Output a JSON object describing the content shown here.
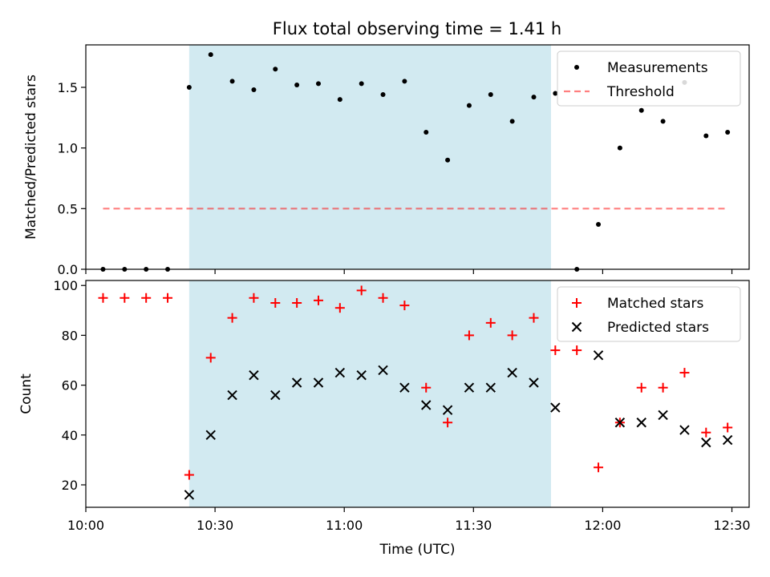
{
  "title": "Flux total observing time = 1.41 h",
  "colors": {
    "shade": "#add8e6",
    "measurement": "#000000",
    "threshold": "#ff0000",
    "matched": "#ff0000",
    "predicted": "#000000"
  },
  "chart_data": [
    {
      "type": "scatter",
      "ylabel": "Matched/Predicted stars",
      "xlabel": "",
      "xlim": [
        "10:00",
        "12:34"
      ],
      "ylim": [
        0,
        1.85
      ],
      "yticks": [
        "0.0",
        "0.5",
        "1.0",
        "1.5"
      ],
      "ytick_values": [
        0,
        0.5,
        1.0,
        1.5
      ],
      "shaded_span": [
        "10:24",
        "11:48"
      ],
      "legend_position": "upper right",
      "series": [
        {
          "name": "Measurements",
          "marker": "dot",
          "x": [
            "10:04",
            "10:09",
            "10:14",
            "10:19",
            "10:24",
            "10:29",
            "10:34",
            "10:39",
            "10:44",
            "10:49",
            "10:54",
            "10:59",
            "11:04",
            "11:09",
            "11:14",
            "11:19",
            "11:24",
            "11:29",
            "11:34",
            "11:39",
            "11:44",
            "11:49",
            "11:54",
            "11:59",
            "12:04",
            "12:09",
            "12:14",
            "12:19",
            "12:24",
            "12:29"
          ],
          "y": [
            0,
            0,
            0,
            0,
            1.5,
            1.77,
            1.55,
            1.48,
            1.65,
            1.52,
            1.53,
            1.4,
            1.53,
            1.44,
            1.55,
            1.13,
            0.9,
            1.35,
            1.44,
            1.22,
            1.42,
            1.45,
            0,
            0.37,
            1.0,
            1.31,
            1.22,
            1.54,
            1.1,
            1.13
          ]
        },
        {
          "name": "Threshold",
          "marker": "dashed-line",
          "x": [
            "10:04",
            "12:29"
          ],
          "y": [
            0.5,
            0.5
          ]
        }
      ]
    },
    {
      "type": "scatter",
      "ylabel": "Count",
      "xlabel": "Time (UTC)",
      "xlim": [
        "10:00",
        "12:34"
      ],
      "ylim": [
        11,
        102
      ],
      "yticks": [
        "20",
        "40",
        "60",
        "80",
        "100"
      ],
      "ytick_values": [
        20,
        40,
        60,
        80,
        100
      ],
      "xticks": [
        "10:00",
        "10:30",
        "11:00",
        "11:30",
        "12:00",
        "12:30"
      ],
      "shaded_span": [
        "10:24",
        "11:48"
      ],
      "legend_position": "upper right",
      "series": [
        {
          "name": "Matched stars",
          "marker": "plus",
          "x": [
            "10:04",
            "10:09",
            "10:14",
            "10:19",
            "10:24",
            "10:29",
            "10:34",
            "10:39",
            "10:44",
            "10:49",
            "10:54",
            "10:59",
            "11:04",
            "11:09",
            "11:14",
            "11:19",
            "11:24",
            "11:29",
            "11:34",
            "11:39",
            "11:44",
            "11:49",
            "11:54",
            "11:59",
            "12:04",
            "12:09",
            "12:14",
            "12:19",
            "12:24",
            "12:29"
          ],
          "y": [
            95,
            95,
            95,
            95,
            24,
            71,
            87,
            95,
            93,
            93,
            94,
            91,
            98,
            95,
            92,
            59,
            45,
            80,
            85,
            80,
            87,
            74,
            74,
            27,
            45,
            59,
            59,
            65,
            41,
            43
          ]
        },
        {
          "name": "Predicted stars",
          "marker": "x",
          "x": [
            "10:24",
            "10:29",
            "10:34",
            "10:39",
            "10:44",
            "10:49",
            "10:54",
            "10:59",
            "11:04",
            "11:09",
            "11:14",
            "11:19",
            "11:24",
            "11:29",
            "11:34",
            "11:39",
            "11:44",
            "11:49",
            "11:59",
            "12:04",
            "12:09",
            "12:14",
            "12:19",
            "12:24",
            "12:29"
          ],
          "y": [
            16,
            40,
            56,
            64,
            56,
            61,
            61,
            65,
            64,
            66,
            59,
            52,
            50,
            59,
            59,
            65,
            61,
            51,
            72,
            45,
            45,
            48,
            42,
            37,
            38
          ]
        }
      ]
    }
  ]
}
